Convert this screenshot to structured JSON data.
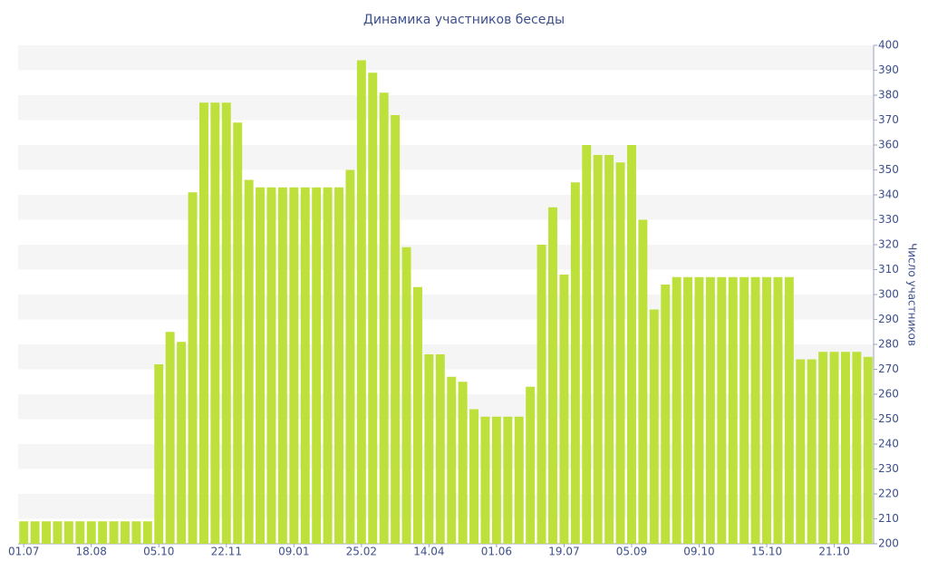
{
  "chart_data": {
    "type": "bar",
    "title": "Динамика участников беседы",
    "y_label": "Число участников",
    "categories": [
      "01.07",
      null,
      null,
      null,
      null,
      null,
      "18.08",
      null,
      null,
      null,
      null,
      null,
      "05.10",
      null,
      null,
      null,
      null,
      null,
      "22.11",
      null,
      null,
      null,
      null,
      null,
      "09.01",
      null,
      null,
      null,
      null,
      null,
      "25.02",
      null,
      null,
      null,
      null,
      null,
      "14.04",
      null,
      null,
      null,
      null,
      null,
      "01.06",
      null,
      null,
      null,
      null,
      null,
      "19.07",
      null,
      null,
      null,
      null,
      null,
      "05.09",
      null,
      null,
      null,
      null,
      null,
      "09.10",
      null,
      null,
      null,
      null,
      null,
      "15.10",
      null,
      null,
      null,
      null,
      null,
      "21.10",
      null,
      null,
      null
    ],
    "values": [
      209,
      209,
      209,
      209,
      209,
      209,
      209,
      209,
      209,
      209,
      209,
      209,
      272,
      285,
      281,
      341,
      377,
      377,
      377,
      369,
      346,
      343,
      343,
      343,
      343,
      343,
      343,
      343,
      343,
      350,
      394,
      389,
      381,
      372,
      319,
      303,
      276,
      276,
      267,
      265,
      254,
      251,
      251,
      251,
      251,
      263,
      320,
      335,
      308,
      345,
      360,
      356,
      356,
      353,
      360,
      330,
      294,
      304,
      307,
      307,
      307,
      307,
      307,
      307,
      307,
      307,
      307,
      307,
      307,
      274,
      274,
      277,
      277,
      277,
      277,
      275
    ],
    "color": "#bde03a",
    "ylim": [
      200,
      400
    ],
    "yticks": [
      200,
      210,
      220,
      230,
      240,
      250,
      260,
      270,
      280,
      290,
      300,
      310,
      320,
      330,
      340,
      350,
      360,
      370,
      380,
      390,
      400
    ],
    "grid": true,
    "y_axis_side": "right"
  }
}
